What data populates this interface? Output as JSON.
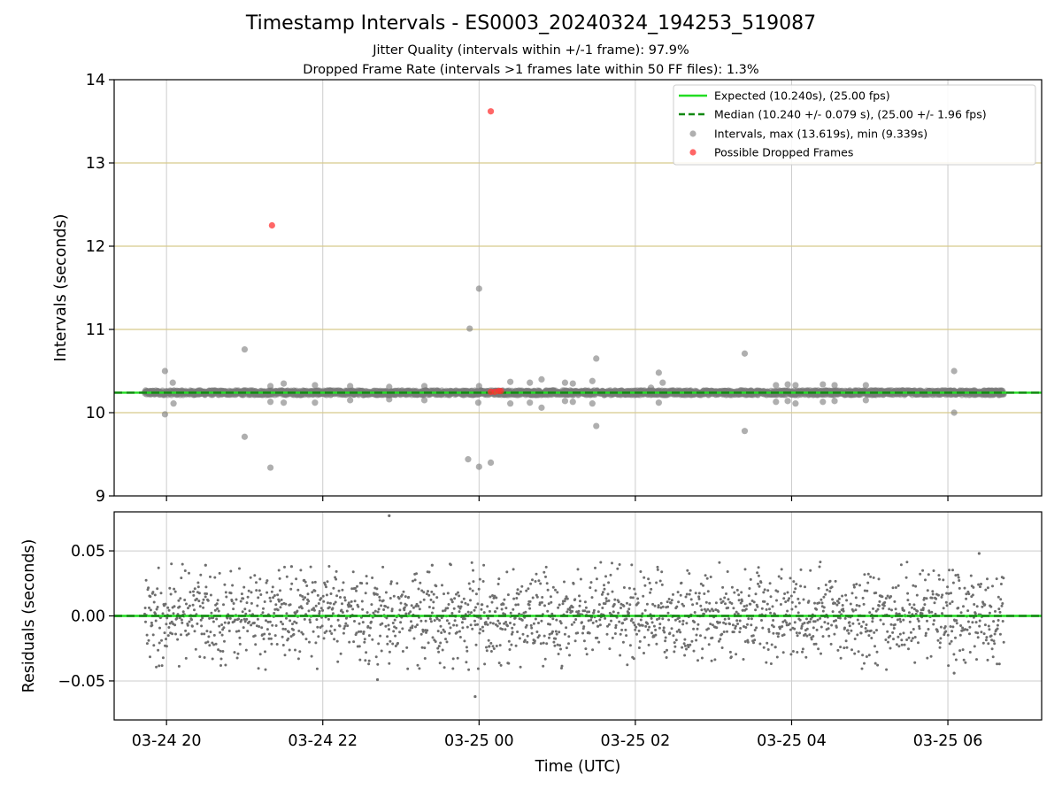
{
  "title": "Timestamp Intervals - ES0003_20240324_194253_519087",
  "subtitle_lines": [
    "Jitter Quality (intervals within +/-1 frame): 97.9%",
    "Dropped Frame Rate (intervals >1 frames late within 50 FF files): 1.3%"
  ],
  "colors": {
    "expected": "#22dd22",
    "median": "#118811",
    "intervals": "#7a7a7a",
    "dropped": "#ff3333",
    "frame_lines": "#d8c98c",
    "grid": "#cccccc",
    "residuals": "#6e6e6e"
  },
  "chart_data": [
    {
      "type": "scatter",
      "panel": "top",
      "xlabel": "Time (UTC)",
      "ylabel": "Intervals (seconds)",
      "x_unit": "hours since 2024-03-24 00:00 UTC",
      "xlim": [
        19.33,
        31.2
      ],
      "ylim": [
        9,
        14
      ],
      "yticks": [
        9,
        10,
        11,
        12,
        13,
        14
      ],
      "xticks": [
        {
          "value": 20,
          "label": "03-24 20"
        },
        {
          "value": 22,
          "label": "03-24 22"
        },
        {
          "value": 24,
          "label": "03-25 00"
        },
        {
          "value": 26,
          "label": "03-25 02"
        },
        {
          "value": 28,
          "label": "03-25 04"
        },
        {
          "value": 30,
          "label": "03-25 06"
        }
      ],
      "grid": true,
      "frame_boundary_lines": [
        10.0,
        11.0,
        12.0,
        13.0
      ],
      "expected_line": 10.24,
      "median_line": 10.24,
      "baseline_band": {
        "x_start": 19.72,
        "x_end": 30.72,
        "y_center": 10.24,
        "spread": 0.03
      },
      "legend": {
        "position": "top-right",
        "entries": [
          {
            "label": "Expected (10.240s), (25.00 fps)",
            "style": "solid-line",
            "color_key": "expected"
          },
          {
            "label": "Median (10.240 +/- 0.079 s), (25.00 +/- 1.96 fps)",
            "style": "dashed-line",
            "color_key": "median"
          },
          {
            "label": "Intervals, max (13.619s), min (9.339s)",
            "style": "marker",
            "color_key": "intervals"
          },
          {
            "label": "Possible Dropped Frames",
            "style": "marker",
            "color_key": "dropped"
          }
        ]
      },
      "series": [
        {
          "name": "Intervals, max (13.619s), min (9.339s)",
          "points": [
            [
              19.98,
              10.5
            ],
            [
              20.08,
              10.36
            ],
            [
              19.98,
              9.98
            ],
            [
              20.09,
              10.11
            ],
            [
              21.0,
              10.76
            ],
            [
              21.0,
              9.71
            ],
            [
              21.33,
              9.34
            ],
            [
              21.33,
              10.32
            ],
            [
              21.33,
              10.13
            ],
            [
              21.5,
              10.35
            ],
            [
              21.5,
              10.12
            ],
            [
              21.9,
              10.33
            ],
            [
              21.9,
              10.12
            ],
            [
              22.35,
              10.32
            ],
            [
              22.35,
              10.15
            ],
            [
              22.85,
              10.31
            ],
            [
              22.85,
              10.16
            ],
            [
              23.3,
              10.32
            ],
            [
              23.3,
              10.15
            ],
            [
              23.88,
              11.01
            ],
            [
              23.86,
              9.44
            ],
            [
              23.99,
              10.12
            ],
            [
              24.0,
              11.49
            ],
            [
              24.0,
              9.35
            ],
            [
              24.0,
              10.32
            ],
            [
              24.15,
              9.4
            ],
            [
              24.4,
              10.37
            ],
            [
              24.4,
              10.11
            ],
            [
              24.65,
              10.36
            ],
            [
              24.65,
              10.12
            ],
            [
              24.8,
              10.4
            ],
            [
              24.8,
              10.06
            ],
            [
              25.1,
              10.36
            ],
            [
              25.1,
              10.14
            ],
            [
              25.2,
              10.35
            ],
            [
              25.2,
              10.13
            ],
            [
              25.45,
              10.38
            ],
            [
              25.45,
              10.11
            ],
            [
              25.5,
              10.65
            ],
            [
              25.5,
              9.84
            ],
            [
              26.2,
              10.3
            ],
            [
              26.3,
              10.48
            ],
            [
              26.3,
              10.12
            ],
            [
              26.35,
              10.36
            ],
            [
              27.4,
              10.71
            ],
            [
              27.4,
              9.78
            ],
            [
              27.8,
              10.33
            ],
            [
              27.8,
              10.13
            ],
            [
              27.95,
              10.34
            ],
            [
              27.95,
              10.14
            ],
            [
              28.05,
              10.33
            ],
            [
              28.05,
              10.11
            ],
            [
              28.4,
              10.34
            ],
            [
              28.4,
              10.13
            ],
            [
              28.55,
              10.33
            ],
            [
              28.55,
              10.14
            ],
            [
              28.95,
              10.33
            ],
            [
              28.95,
              10.15
            ],
            [
              30.08,
              10.5
            ],
            [
              30.08,
              10.0
            ]
          ]
        },
        {
          "name": "Possible Dropped Frames",
          "points": [
            [
              21.35,
              12.25
            ],
            [
              24.15,
              13.62
            ],
            [
              24.15,
              10.25
            ],
            [
              24.2,
              10.25
            ],
            [
              24.25,
              10.26
            ],
            [
              24.28,
              10.26
            ]
          ]
        }
      ]
    },
    {
      "type": "scatter",
      "panel": "bottom",
      "xlabel": "Time (UTC)",
      "ylabel": "Residuals (seconds)",
      "x_unit": "hours since 2024-03-24 00:00 UTC",
      "xlim": [
        19.33,
        31.2
      ],
      "ylim": [
        -0.08,
        0.08
      ],
      "yticks": [
        {
          "value": 0.05,
          "label": "0.05"
        },
        {
          "value": 0.0,
          "label": "0.00"
        },
        {
          "value": -0.05,
          "label": "−0.05"
        }
      ],
      "grid": true,
      "zero_lines": {
        "expected": 0.0,
        "median": 0.0
      },
      "residual_cloud": {
        "x_start": 19.72,
        "x_end": 30.72,
        "count": 2000,
        "std": 0.017
      },
      "outliers": [
        [
          22.85,
          0.077
        ],
        [
          23.95,
          -0.062
        ],
        [
          30.4,
          0.048
        ],
        [
          30.08,
          -0.044
        ],
        [
          22.7,
          -0.049
        ],
        [
          20.5,
          0.039
        ],
        [
          21.6,
          0.038
        ],
        [
          23.4,
          0.039
        ]
      ]
    }
  ]
}
